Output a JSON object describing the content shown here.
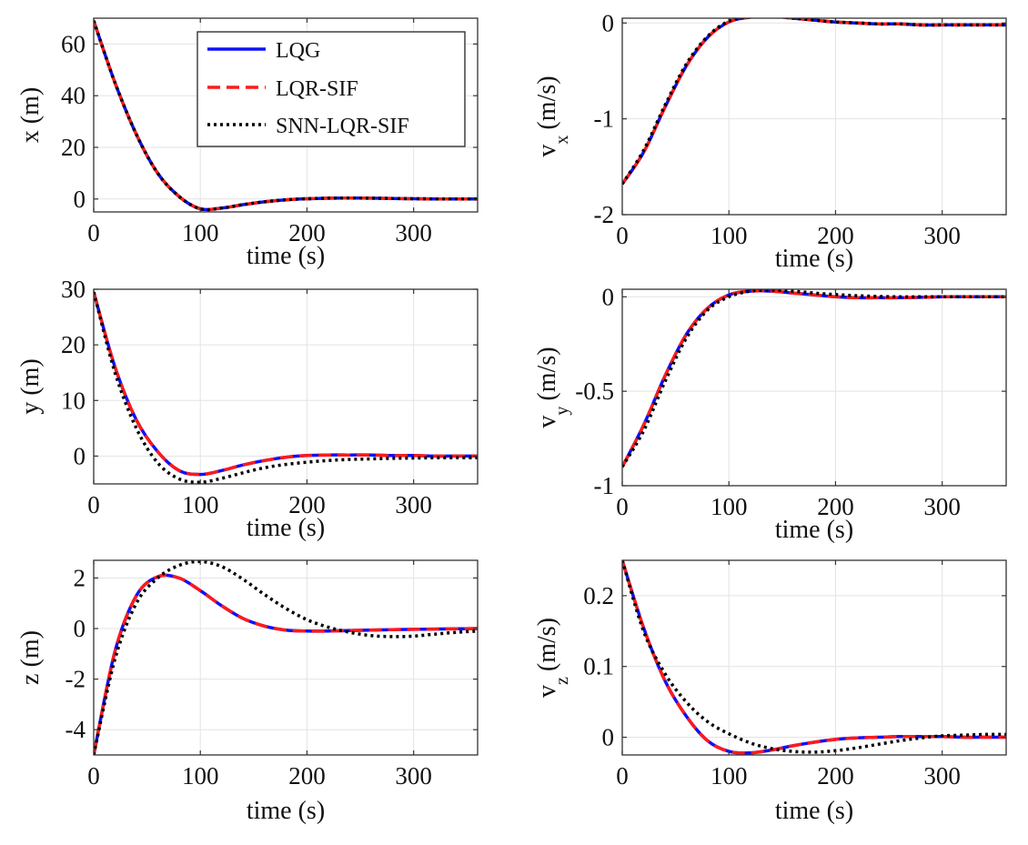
{
  "colors": {
    "LQG": "#1010ff",
    "LQR-SIF": "#ff1a1a",
    "SNN-LQR-SIF": "#000000",
    "grid": "#e3e3e3",
    "axis": "#333333"
  },
  "legend": {
    "placement": "top-right of first panel",
    "entries": [
      "LQG",
      "LQR-SIF",
      "SNN-LQR-SIF"
    ]
  },
  "chart_data": [
    {
      "type": "line",
      "id": "x",
      "ylabel": "x (m)",
      "ylabel_sub": "",
      "xlabel": "time (s)",
      "xlim": [
        0,
        360
      ],
      "ylim": [
        -5,
        70
      ],
      "xticks": [
        0,
        100,
        200,
        300
      ],
      "yticks": [
        0,
        20,
        40,
        60
      ],
      "ytick_labels": [
        "0",
        "20",
        "40",
        "60"
      ],
      "grid": true,
      "x": [
        0,
        20,
        40,
        60,
        80,
        100,
        120,
        140,
        160,
        180,
        200,
        220,
        240,
        260,
        280,
        300,
        320,
        340,
        360
      ],
      "series": [
        {
          "name": "LQG",
          "values": [
            69,
            45,
            25,
            10,
            1,
            -3.8,
            -3.5,
            -2.2,
            -1.1,
            -0.3,
            0.1,
            0.3,
            0.4,
            0.3,
            0.2,
            0.1,
            0.05,
            0,
            0
          ]
        },
        {
          "name": "LQR-SIF",
          "values": [
            69,
            45,
            25,
            10,
            1,
            -3.8,
            -3.5,
            -2.2,
            -1.1,
            -0.3,
            0.1,
            0.3,
            0.4,
            0.3,
            0.2,
            0.1,
            0.05,
            0,
            0
          ]
        },
        {
          "name": "SNN-LQR-SIF",
          "values": [
            69,
            45,
            25,
            10,
            1,
            -3.8,
            -3.5,
            -2.2,
            -1.1,
            -0.3,
            0.1,
            0.3,
            0.4,
            0.3,
            0.2,
            0.1,
            0.05,
            0,
            0
          ]
        }
      ]
    },
    {
      "type": "line",
      "id": "vx",
      "ylabel": "v",
      "ylabel_sub": "x",
      "ylabel_unit": "(m/s)",
      "xlabel": "time (s)",
      "xlim": [
        0,
        360
      ],
      "ylim": [
        -2,
        0.05
      ],
      "xticks": [
        0,
        100,
        200,
        300
      ],
      "yticks": [
        -2,
        -1,
        0
      ],
      "ytick_labels": [
        "-2",
        "-1",
        "0"
      ],
      "grid": true,
      "x": [
        0,
        20,
        40,
        60,
        80,
        100,
        120,
        140,
        160,
        180,
        200,
        220,
        240,
        260,
        280,
        300,
        320,
        340,
        360
      ],
      "series": [
        {
          "name": "LQG",
          "values": [
            -1.68,
            -1.35,
            -0.88,
            -0.45,
            -0.15,
            0.01,
            0.06,
            0.07,
            0.05,
            0.03,
            0.01,
            0,
            -0.01,
            -0.01,
            -0.02,
            -0.02,
            -0.02,
            -0.02,
            -0.02
          ]
        },
        {
          "name": "LQR-SIF",
          "values": [
            -1.68,
            -1.35,
            -0.88,
            -0.45,
            -0.15,
            0.01,
            0.06,
            0.07,
            0.05,
            0.03,
            0.01,
            0,
            -0.01,
            -0.01,
            -0.02,
            -0.02,
            -0.02,
            -0.02,
            -0.02
          ]
        },
        {
          "name": "SNN-LQR-SIF",
          "values": [
            -1.68,
            -1.33,
            -0.86,
            -0.43,
            -0.14,
            0.02,
            0.06,
            0.07,
            0.05,
            0.03,
            0.01,
            0,
            -0.01,
            -0.01,
            -0.02,
            -0.02,
            -0.02,
            -0.02,
            -0.02
          ]
        }
      ]
    },
    {
      "type": "line",
      "id": "y",
      "ylabel": "y (m)",
      "ylabel_sub": "",
      "xlabel": "time (s)",
      "xlim": [
        0,
        360
      ],
      "ylim": [
        -5,
        30
      ],
      "xticks": [
        0,
        100,
        200,
        300
      ],
      "yticks": [
        0,
        10,
        20,
        30
      ],
      "ytick_labels": [
        "0",
        "10",
        "20",
        "30"
      ],
      "grid": true,
      "x": [
        0,
        20,
        40,
        60,
        80,
        100,
        120,
        140,
        160,
        180,
        200,
        220,
        240,
        260,
        280,
        300,
        320,
        340,
        360
      ],
      "series": [
        {
          "name": "LQG",
          "values": [
            29.5,
            16,
            6.5,
            0.8,
            -2.6,
            -3.3,
            -2.6,
            -1.6,
            -0.8,
            -0.2,
            0.1,
            0.2,
            0.2,
            0.2,
            0.1,
            0.1,
            0,
            0,
            0
          ]
        },
        {
          "name": "LQR-SIF",
          "values": [
            29.5,
            16,
            6.5,
            0.8,
            -2.6,
            -3.3,
            -2.6,
            -1.6,
            -0.8,
            -0.2,
            0.1,
            0.2,
            0.2,
            0.2,
            0.1,
            0.1,
            0,
            0,
            0
          ]
        },
        {
          "name": "SNN-LQR-SIF",
          "values": [
            29.5,
            15,
            5,
            -1.2,
            -4.1,
            -4.7,
            -4,
            -3,
            -2.1,
            -1.5,
            -1.1,
            -0.8,
            -0.6,
            -0.5,
            -0.4,
            -0.35,
            -0.3,
            -0.3,
            -0.3
          ]
        }
      ]
    },
    {
      "type": "line",
      "id": "vy",
      "ylabel": "v",
      "ylabel_sub": "y",
      "ylabel_unit": "(m/s)",
      "xlabel": "time (s)",
      "xlim": [
        0,
        360
      ],
      "ylim": [
        -1,
        0.04
      ],
      "xticks": [
        0,
        100,
        200,
        300
      ],
      "yticks": [
        -1,
        -0.5,
        0
      ],
      "ytick_labels": [
        "-1",
        "-0.5",
        "0"
      ],
      "grid": true,
      "x": [
        0,
        20,
        40,
        60,
        80,
        100,
        120,
        140,
        160,
        180,
        200,
        220,
        240,
        260,
        280,
        300,
        320,
        340,
        360
      ],
      "series": [
        {
          "name": "LQG",
          "values": [
            -0.9,
            -0.68,
            -0.42,
            -0.2,
            -0.06,
            0.01,
            0.03,
            0.03,
            0.02,
            0.01,
            0,
            -0.005,
            -0.005,
            -0.005,
            -0.003,
            0,
            0,
            0,
            0
          ]
        },
        {
          "name": "LQR-SIF",
          "values": [
            -0.9,
            -0.68,
            -0.42,
            -0.2,
            -0.06,
            0.01,
            0.03,
            0.03,
            0.02,
            0.01,
            0,
            -0.005,
            -0.005,
            -0.005,
            -0.003,
            0,
            0,
            0,
            0
          ]
        },
        {
          "name": "SNN-LQR-SIF",
          "values": [
            -0.9,
            -0.71,
            -0.45,
            -0.22,
            -0.07,
            0,
            0.03,
            0.035,
            0.03,
            0.02,
            0.012,
            0.006,
            0.002,
            0,
            0,
            0,
            0,
            0,
            0
          ]
        }
      ]
    },
    {
      "type": "line",
      "id": "z",
      "ylabel": "z (m)",
      "ylabel_sub": "",
      "xlabel": "time (s)",
      "xlim": [
        0,
        360
      ],
      "ylim": [
        -5,
        2.7
      ],
      "xticks": [
        0,
        100,
        200,
        300
      ],
      "yticks": [
        -4,
        -2,
        0,
        2
      ],
      "ytick_labels": [
        "-4",
        "-2",
        "0",
        "2"
      ],
      "grid": true,
      "x": [
        0,
        20,
        40,
        60,
        80,
        100,
        120,
        140,
        160,
        180,
        200,
        220,
        240,
        260,
        280,
        300,
        320,
        340,
        360
      ],
      "series": [
        {
          "name": "LQG",
          "values": [
            -5,
            -0.9,
            1.3,
            2.05,
            2,
            1.5,
            0.9,
            0.4,
            0.1,
            -0.06,
            -0.1,
            -0.1,
            -0.08,
            -0.06,
            -0.04,
            -0.03,
            -0.02,
            -0.01,
            0
          ]
        },
        {
          "name": "LQR-SIF",
          "values": [
            -5,
            -0.9,
            1.3,
            2.05,
            2,
            1.5,
            0.9,
            0.4,
            0.1,
            -0.06,
            -0.1,
            -0.1,
            -0.08,
            -0.06,
            -0.04,
            -0.03,
            -0.02,
            -0.01,
            0
          ]
        },
        {
          "name": "SNN-LQR-SIF",
          "values": [
            -5,
            -1.2,
            1.0,
            2.0,
            2.5,
            2.65,
            2.45,
            1.95,
            1.35,
            0.8,
            0.35,
            0.05,
            -0.15,
            -0.28,
            -0.32,
            -0.3,
            -0.22,
            -0.15,
            -0.1
          ]
        }
      ]
    },
    {
      "type": "line",
      "id": "vz",
      "ylabel": "v",
      "ylabel_sub": "z",
      "ylabel_unit": "(m/s)",
      "xlabel": "time (s)",
      "xlim": [
        0,
        360
      ],
      "ylim": [
        -0.025,
        0.25
      ],
      "xticks": [
        0,
        100,
        200,
        300
      ],
      "yticks": [
        0,
        0.1,
        0.2
      ],
      "ytick_labels": [
        "0",
        "0.1",
        "0.2"
      ],
      "grid": true,
      "x": [
        0,
        20,
        40,
        60,
        80,
        100,
        120,
        140,
        160,
        180,
        200,
        220,
        240,
        260,
        280,
        300,
        320,
        340,
        360
      ],
      "series": [
        {
          "name": "LQG",
          "values": [
            0.25,
            0.155,
            0.08,
            0.03,
            -0.005,
            -0.02,
            -0.022,
            -0.018,
            -0.012,
            -0.007,
            -0.003,
            -0.001,
            0,
            0.001,
            0.001,
            0.001,
            0,
            0,
            0
          ]
        },
        {
          "name": "LQR-SIF",
          "values": [
            0.25,
            0.155,
            0.08,
            0.03,
            -0.005,
            -0.02,
            -0.022,
            -0.018,
            -0.012,
            -0.007,
            -0.003,
            -0.001,
            0,
            0.001,
            0.001,
            0.001,
            0,
            0,
            0
          ]
        },
        {
          "name": "SNN-LQR-SIF",
          "values": [
            0.25,
            0.15,
            0.09,
            0.05,
            0.022,
            0.005,
            -0.008,
            -0.016,
            -0.02,
            -0.021,
            -0.019,
            -0.015,
            -0.01,
            -0.005,
            -0.001,
            0.002,
            0.003,
            0.004,
            0.004
          ]
        }
      ]
    }
  ]
}
